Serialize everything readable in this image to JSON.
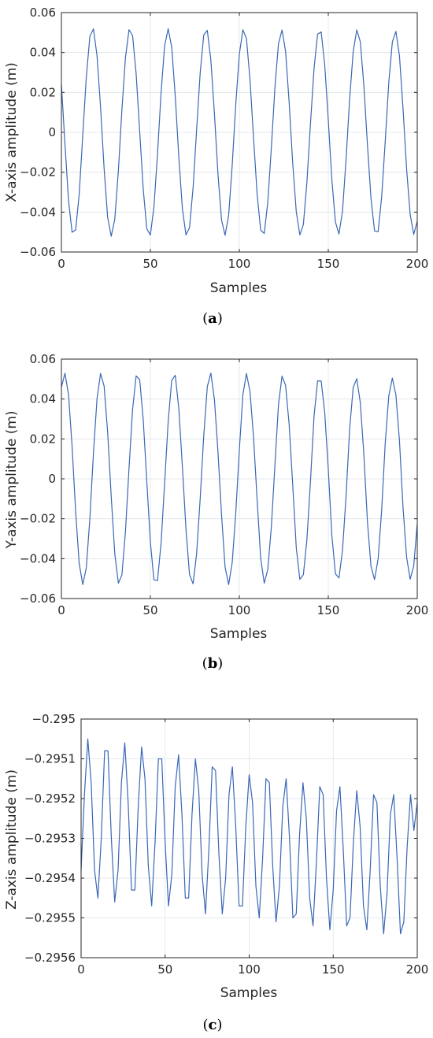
{
  "colors": {
    "series": "#3a67b5",
    "grid": "#dfe3e8",
    "axes": "#262626"
  },
  "chart_data": [
    {
      "id": "a",
      "type": "line",
      "title": "",
      "caption": {
        "open": "(",
        "letter": "a",
        "close": ")"
      },
      "xlabel": "Samples",
      "ylabel": "X-axis amplitude (m)",
      "xlim": [
        0,
        200
      ],
      "ylim": [
        -0.06,
        0.06
      ],
      "grid": true,
      "xticks": [
        0,
        50,
        100,
        150,
        200
      ],
      "xtick_labels": [
        "0",
        "50",
        "100",
        "150",
        "200"
      ],
      "yticks": [
        -0.06,
        -0.04,
        -0.02,
        0,
        0.02,
        0.04,
        0.06
      ],
      "ytick_labels": [
        "−0.06",
        "−0.04",
        "−0.02",
        "0",
        "0.02",
        "0.04",
        "0.06"
      ],
      "series": [
        {
          "x": [
            0,
            2,
            4,
            6,
            8,
            10,
            12,
            14,
            16,
            18,
            20,
            22,
            24,
            26,
            28,
            30,
            32,
            34,
            36,
            38,
            40,
            42,
            44,
            46,
            48,
            50,
            52,
            54,
            56,
            58,
            60,
            62,
            64,
            66,
            68,
            70,
            72,
            74,
            76,
            78,
            80,
            82,
            84,
            86,
            88,
            90,
            92,
            94,
            96,
            98,
            100,
            102,
            104,
            106,
            108,
            110,
            112,
            114,
            116,
            118,
            120,
            122,
            124,
            126,
            128,
            130,
            132,
            134,
            136,
            138,
            140,
            142,
            144,
            146,
            148,
            150,
            152,
            154,
            156,
            158,
            160,
            162,
            164,
            166,
            168,
            170,
            172,
            174,
            176,
            178,
            180,
            182,
            184,
            186,
            188,
            190,
            192,
            194,
            196,
            198,
            200
          ],
          "y": [
            0.024,
            -0.0059,
            -0.0342,
            -0.0501,
            -0.0489,
            -0.031,
            -0.0016,
            0.0277,
            0.0481,
            0.0518,
            0.0385,
            0.0126,
            -0.0182,
            -0.0427,
            -0.0521,
            -0.0436,
            -0.0195,
            0.0112,
            0.0375,
            0.0514,
            0.0485,
            0.0294,
            0.0003,
            -0.0286,
            -0.0484,
            -0.0515,
            -0.0374,
            -0.011,
            0.0195,
            0.0433,
            0.0519,
            0.0427,
            0.018,
            -0.0126,
            -0.0383,
            -0.0514,
            -0.0478,
            -0.0279,
            0.0013,
            0.0298,
            0.0488,
            0.0511,
            0.0362,
            0.0094,
            -0.021,
            -0.0439,
            -0.0516,
            -0.0416,
            -0.0165,
            0.014,
            0.0391,
            0.0514,
            0.047,
            0.0264,
            -0.003,
            -0.031,
            -0.049,
            -0.0507,
            -0.035,
            -0.0077,
            0.0224,
            0.0444,
            0.0513,
            0.0405,
            0.0149,
            -0.0154,
            -0.0398,
            -0.0514,
            -0.0462,
            -0.0248,
            0.0046,
            0.0321,
            0.0492,
            0.0503,
            0.0337,
            0.0061,
            -0.0237,
            -0.0449,
            -0.051,
            -0.0394,
            -0.0134,
            0.0168,
            0.0404,
            0.0513,
            0.0454,
            0.0233,
            -0.0062,
            -0.0332,
            -0.0494,
            -0.0498,
            -0.0324,
            -0.0045,
            0.025,
            0.0453,
            0.0506,
            0.0383,
            0.0119,
            -0.0182,
            -0.041,
            -0.0512,
            -0.0445
          ]
        }
      ]
    },
    {
      "id": "b",
      "type": "line",
      "title": "",
      "caption": {
        "open": "(",
        "letter": "b",
        "close": ")"
      },
      "xlabel": "Samples",
      "ylabel": "Y-axis amplitude (m)",
      "xlim": [
        0,
        200
      ],
      "ylim": [
        -0.06,
        0.06
      ],
      "grid": true,
      "xticks": [
        0,
        50,
        100,
        150,
        200
      ],
      "xtick_labels": [
        "0",
        "50",
        "100",
        "150",
        "200"
      ],
      "yticks": [
        -0.06,
        -0.04,
        -0.02,
        0,
        0.02,
        0.04,
        0.06
      ],
      "ytick_labels": [
        "−0.06",
        "−0.04",
        "−0.02",
        "0",
        "0.02",
        "0.04",
        "0.06"
      ],
      "series": [
        {
          "x": [
            0,
            2,
            4,
            6,
            8,
            10,
            12,
            14,
            16,
            18,
            20,
            22,
            24,
            26,
            28,
            30,
            32,
            34,
            36,
            38,
            40,
            42,
            44,
            46,
            48,
            50,
            52,
            54,
            56,
            58,
            60,
            62,
            64,
            66,
            68,
            70,
            72,
            74,
            76,
            78,
            80,
            82,
            84,
            86,
            88,
            90,
            92,
            94,
            96,
            98,
            100,
            102,
            104,
            106,
            108,
            110,
            112,
            114,
            116,
            118,
            120,
            122,
            124,
            126,
            128,
            130,
            132,
            134,
            136,
            138,
            140,
            142,
            144,
            146,
            148,
            150,
            152,
            154,
            156,
            158,
            160,
            162,
            164,
            166,
            168,
            170,
            172,
            174,
            176,
            178,
            180,
            182,
            184,
            186,
            188,
            190,
            192,
            194,
            196,
            198,
            200
          ],
          "y": [
            0.046,
            0.0529,
            0.0423,
            0.0162,
            -0.0164,
            -0.0424,
            -0.053,
            -0.0445,
            -0.0198,
            0.0128,
            0.04,
            0.0528,
            0.0465,
            0.0232,
            -0.009,
            -0.0375,
            -0.0523,
            -0.0482,
            -0.0264,
            0.0052,
            0.0347,
            0.0516,
            0.0497,
            0.0295,
            -0.0014,
            -0.0317,
            -0.0506,
            -0.051,
            -0.0324,
            -0.0024,
            0.0285,
            0.0494,
            0.0519,
            0.035,
            0.0061,
            -0.0251,
            -0.0479,
            -0.0526,
            -0.0375,
            -0.0099,
            0.0216,
            0.0462,
            0.053,
            0.0398,
            0.0135,
            -0.018,
            -0.0443,
            -0.053,
            -0.0419,
            -0.0171,
            0.0143,
            0.0422,
            0.0528,
            0.0437,
            0.0206,
            -0.0105,
            -0.0398,
            -0.0523,
            -0.0454,
            -0.024,
            0.0067,
            0.0373,
            0.0515,
            0.0468,
            0.0272,
            -0.0029,
            -0.0345,
            -0.0504,
            -0.048,
            -0.0302,
            -0.0009,
            0.0315,
            0.0491,
            0.049,
            0.0331,
            0.0047,
            -0.0283,
            -0.0476,
            -0.0497,
            -0.0357,
            -0.0084,
            0.025,
            0.0458,
            0.0502,
            0.0381,
            0.0121,
            -0.0215,
            -0.0438,
            -0.0505,
            -0.0402,
            -0.0156,
            0.0179,
            0.0416,
            0.0505,
            0.0421,
            0.0191,
            -0.0143,
            -0.0392,
            -0.0503,
            -0.0438,
            -0.0225
          ]
        }
      ]
    },
    {
      "id": "c",
      "type": "line",
      "title": "",
      "caption": {
        "open": "(",
        "letter": "c",
        "close": ")"
      },
      "xlabel": "Samples",
      "ylabel": "Z-axis amplitude (m)",
      "xlim": [
        0,
        200
      ],
      "ylim": [
        -0.2956,
        -0.295
      ],
      "grid": true,
      "xticks": [
        0,
        50,
        100,
        150,
        200
      ],
      "xtick_labels": [
        "0",
        "50",
        "100",
        "150",
        "200"
      ],
      "yticks": [
        -0.2956,
        -0.2955,
        -0.2954,
        -0.2953,
        -0.2952,
        -0.2951,
        -0.295
      ],
      "ytick_labels": [
        "−0.2956",
        "−0.2955",
        "−0.2954",
        "−0.2953",
        "−0.2952",
        "−0.2951",
        "−0.295"
      ],
      "series": [
        {
          "x": [
            0,
            2,
            4,
            6,
            8,
            10,
            12,
            14,
            16,
            18,
            20,
            22,
            24,
            26,
            28,
            30,
            32,
            34,
            36,
            38,
            40,
            42,
            44,
            46,
            48,
            50,
            52,
            54,
            56,
            58,
            60,
            62,
            64,
            66,
            68,
            70,
            72,
            74,
            76,
            78,
            80,
            82,
            84,
            86,
            88,
            90,
            92,
            94,
            96,
            98,
            100,
            102,
            104,
            106,
            108,
            110,
            112,
            114,
            116,
            118,
            120,
            122,
            124,
            126,
            128,
            130,
            132,
            134,
            136,
            138,
            140,
            142,
            144,
            146,
            148,
            150,
            152,
            154,
            156,
            158,
            160,
            162,
            164,
            166,
            168,
            170,
            172,
            174,
            176,
            178,
            180,
            182,
            184,
            186,
            188,
            190,
            192,
            194,
            196,
            198,
            200
          ],
          "y": [
            -0.29538,
            -0.29519,
            -0.29505,
            -0.29516,
            -0.29538,
            -0.29545,
            -0.2953,
            -0.29508,
            -0.29508,
            -0.2953,
            -0.29546,
            -0.29538,
            -0.29516,
            -0.29506,
            -0.29521,
            -0.29543,
            -0.29543,
            -0.29522,
            -0.29507,
            -0.29515,
            -0.29537,
            -0.29547,
            -0.29531,
            -0.2951,
            -0.2951,
            -0.29531,
            -0.29547,
            -0.29539,
            -0.29517,
            -0.29509,
            -0.29524,
            -0.29545,
            -0.29545,
            -0.29524,
            -0.2951,
            -0.29518,
            -0.29539,
            -0.29549,
            -0.29533,
            -0.29512,
            -0.29513,
            -0.29534,
            -0.29549,
            -0.2954,
            -0.29519,
            -0.29512,
            -0.29527,
            -0.29547,
            -0.29547,
            -0.29527,
            -0.29514,
            -0.29521,
            -0.29542,
            -0.2955,
            -0.29535,
            -0.29515,
            -0.29516,
            -0.29537,
            -0.29551,
            -0.29542,
            -0.29522,
            -0.29515,
            -0.2953,
            -0.2955,
            -0.29549,
            -0.29529,
            -0.29516,
            -0.29525,
            -0.29545,
            -0.29552,
            -0.29536,
            -0.29517,
            -0.29519,
            -0.2954,
            -0.29553,
            -0.29543,
            -0.29523,
            -0.29517,
            -0.29533,
            -0.29552,
            -0.2955,
            -0.29531,
            -0.29518,
            -0.29527,
            -0.29547,
            -0.29553,
            -0.29538,
            -0.29519,
            -0.29521,
            -0.29542,
            -0.29554,
            -0.29544,
            -0.29524,
            -0.29519,
            -0.29535,
            -0.29554,
            -0.29551,
            -0.29532,
            -0.29519,
            -0.29528,
            -0.29521
          ]
        }
      ]
    }
  ]
}
